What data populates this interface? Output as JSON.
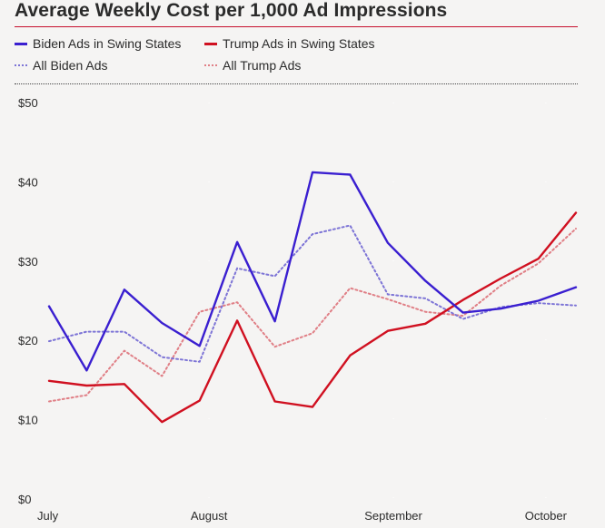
{
  "chart_data": {
    "type": "line",
    "title": "Average Weekly Cost per 1,000 Ad Impressions",
    "xlabel": "",
    "ylabel": "",
    "ylim": [
      0,
      50
    ],
    "yticks": [
      0,
      10,
      20,
      30,
      40,
      50
    ],
    "ytick_labels": [
      "$0",
      "$10",
      "$20",
      "$30",
      "$40",
      "$50"
    ],
    "x_ticks": [
      {
        "label": "July",
        "week": 0
      },
      {
        "label": "August",
        "week": 4.25
      },
      {
        "label": "September",
        "week": 9.15
      },
      {
        "label": "October",
        "week": 13.2
      }
    ],
    "x": [
      0,
      1,
      2,
      3,
      4,
      5,
      6,
      7,
      8,
      9,
      10,
      11,
      12,
      13,
      14
    ],
    "series": [
      {
        "name": "Biden Ads in Swing States",
        "color": "#3a1fd0",
        "style": "solid",
        "values": [
          24.3,
          16.2,
          26.4,
          22.2,
          19.3,
          32.4,
          22.4,
          41.2,
          40.9,
          32.3,
          27.5,
          23.5,
          24.0,
          25.0,
          26.7
        ]
      },
      {
        "name": "Trump Ads in Swing States",
        "color": "#d01020",
        "style": "solid",
        "values": [
          14.9,
          14.3,
          14.5,
          9.7,
          12.4,
          22.5,
          12.3,
          11.6,
          18.1,
          21.2,
          22.1,
          25.1,
          27.8,
          30.3,
          36.1
        ]
      },
      {
        "name": "All Biden Ads",
        "color": "#7d74d6",
        "style": "dotted",
        "values": [
          19.9,
          21.1,
          21.1,
          17.9,
          17.3,
          29.1,
          28.1,
          33.4,
          34.5,
          25.8,
          25.3,
          22.7,
          24.2,
          24.7,
          24.4
        ]
      },
      {
        "name": "All Trump Ads",
        "color": "#e07f86",
        "style": "dotted",
        "values": [
          12.3,
          13.1,
          18.7,
          15.5,
          23.6,
          24.8,
          19.2,
          20.9,
          26.6,
          25.2,
          23.6,
          23.1,
          26.9,
          29.7,
          34.1
        ]
      }
    ]
  }
}
